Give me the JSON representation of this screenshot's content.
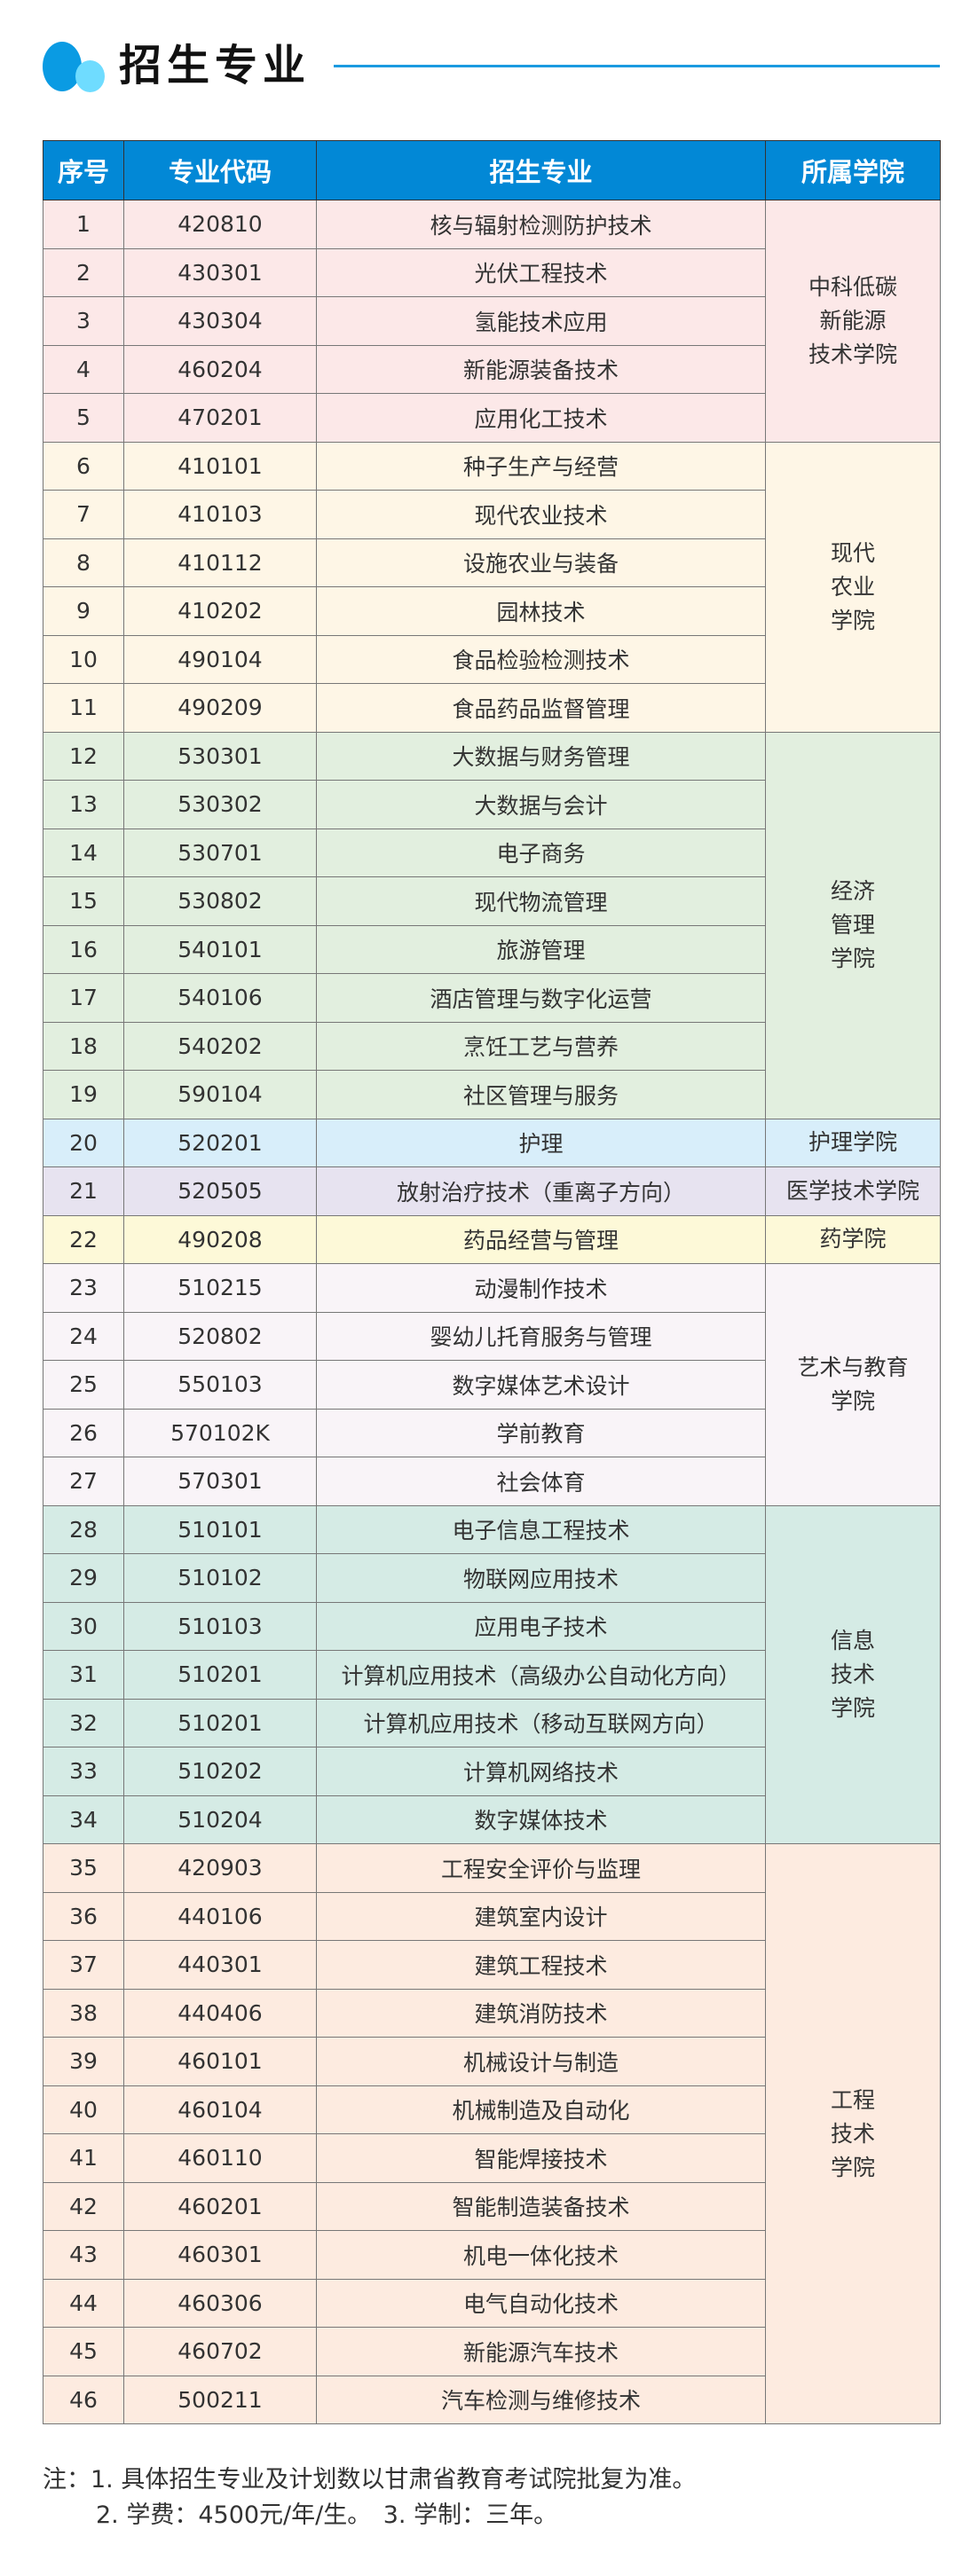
{
  "title": "招生专业",
  "colors": {
    "header": "#0288d6",
    "accent_line": "#1a9ae0"
  },
  "headers": [
    "序号",
    "专业代码",
    "招生专业",
    "所属学院"
  ],
  "groups": [
    {
      "college": [
        "中科低碳",
        "新能源",
        "技术学院"
      ],
      "color": "#fce8e8",
      "rows": [
        [
          "1",
          "420810",
          "核与辐射检测防护技术"
        ],
        [
          "2",
          "430301",
          "光伏工程技术"
        ],
        [
          "3",
          "430304",
          "氢能技术应用"
        ],
        [
          "4",
          "460204",
          "新能源装备技术"
        ],
        [
          "5",
          "470201",
          "应用化工技术"
        ]
      ]
    },
    {
      "college": [
        "现代",
        "农业",
        "学院"
      ],
      "color": "#fef6e6",
      "rows": [
        [
          "6",
          "410101",
          "种子生产与经营"
        ],
        [
          "7",
          "410103",
          "现代农业技术"
        ],
        [
          "8",
          "410112",
          "设施农业与装备"
        ],
        [
          "9",
          "410202",
          "园林技术"
        ],
        [
          "10",
          "490104",
          "食品检验检测技术"
        ],
        [
          "11",
          "490209",
          "食品药品监督管理"
        ]
      ]
    },
    {
      "college": [
        "经济",
        "管理",
        "学院"
      ],
      "color": "#e2efdf",
      "rows": [
        [
          "12",
          "530301",
          "大数据与财务管理"
        ],
        [
          "13",
          "530302",
          "大数据与会计"
        ],
        [
          "14",
          "530701",
          "电子商务"
        ],
        [
          "15",
          "530802",
          "现代物流管理"
        ],
        [
          "16",
          "540101",
          "旅游管理"
        ],
        [
          "17",
          "540106",
          "酒店管理与数字化运营"
        ],
        [
          "18",
          "540202",
          "烹饪工艺与营养"
        ],
        [
          "19",
          "590104",
          "社区管理与服务"
        ]
      ]
    },
    {
      "college": [
        "护理学院"
      ],
      "color": "#d8eefa",
      "rows": [
        [
          "20",
          "520201",
          "护理"
        ]
      ]
    },
    {
      "college": [
        "医学技术学院"
      ],
      "color": "#e7e3f0",
      "rows": [
        [
          "21",
          "520505",
          "放射治疗技术（重离子方向）"
        ]
      ]
    },
    {
      "college": [
        "药学院"
      ],
      "color": "#fdf9d8",
      "rows": [
        [
          "22",
          "490208",
          "药品经营与管理"
        ]
      ]
    },
    {
      "college": [
        "艺术与教育",
        "学院"
      ],
      "color": "#f9f4f8",
      "rows": [
        [
          "23",
          "510215",
          "动漫制作技术"
        ],
        [
          "24",
          "520802",
          "婴幼儿托育服务与管理"
        ],
        [
          "25",
          "550103",
          "数字媒体艺术设计"
        ],
        [
          "26",
          "570102K",
          "学前教育"
        ],
        [
          "27",
          "570301",
          "社会体育"
        ]
      ]
    },
    {
      "college": [
        "信息",
        "技术",
        "学院"
      ],
      "color": "#d5ebe5",
      "rows": [
        [
          "28",
          "510101",
          "电子信息工程技术"
        ],
        [
          "29",
          "510102",
          "物联网应用技术"
        ],
        [
          "30",
          "510103",
          "应用电子技术"
        ],
        [
          "31",
          "510201",
          "计算机应用技术（高级办公自动化方向）"
        ],
        [
          "32",
          "510201",
          "计算机应用技术（移动互联网方向）"
        ],
        [
          "33",
          "510202",
          "计算机网络技术"
        ],
        [
          "34",
          "510204",
          "数字媒体技术"
        ]
      ]
    },
    {
      "college": [
        "工程",
        "技术",
        "学院"
      ],
      "color": "#fdebe0",
      "rows": [
        [
          "35",
          "420903",
          "工程安全评价与监理"
        ],
        [
          "36",
          "440106",
          "建筑室内设计"
        ],
        [
          "37",
          "440301",
          "建筑工程技术"
        ],
        [
          "38",
          "440406",
          "建筑消防技术"
        ],
        [
          "39",
          "460101",
          "机械设计与制造"
        ],
        [
          "40",
          "460104",
          "机械制造及自动化"
        ],
        [
          "41",
          "460110",
          "智能焊接技术"
        ],
        [
          "42",
          "460201",
          "智能制造装备技术"
        ],
        [
          "43",
          "460301",
          "机电一体化技术"
        ],
        [
          "44",
          "460306",
          "电气自动化技术"
        ],
        [
          "45",
          "460702",
          "新能源汽车技术"
        ],
        [
          "46",
          "500211",
          "汽车检测与维修技术"
        ]
      ]
    }
  ],
  "notes": {
    "line1": "注：1. 具体招生专业及计划数以甘肃省教育考试院批复为准。",
    "line2": "2. 学费：4500元/年/生。　3. 学制：三年。"
  }
}
